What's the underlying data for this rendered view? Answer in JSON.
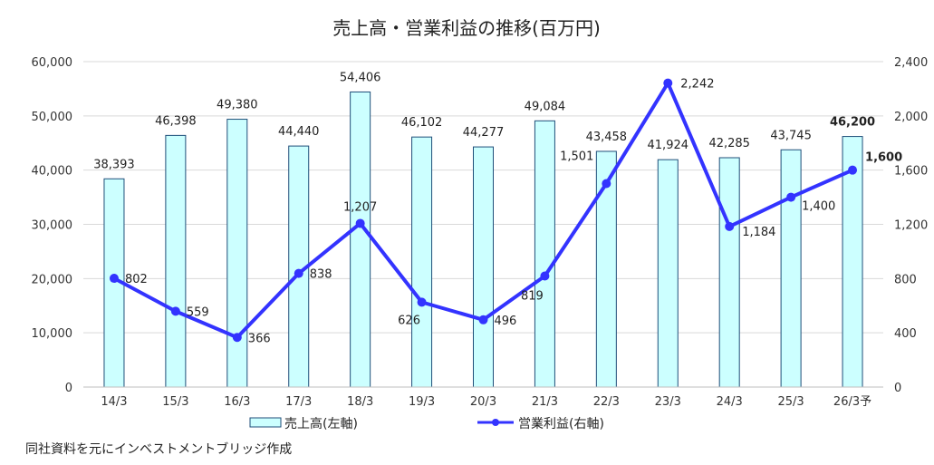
{
  "chart_data": {
    "type": "bar",
    "title": "売上高・営業利益の推移(百万円)",
    "categories": [
      "14/3",
      "15/3",
      "16/3",
      "17/3",
      "18/3",
      "19/3",
      "20/3",
      "21/3",
      "22/3",
      "23/3",
      "24/3",
      "25/3",
      "26/3予"
    ],
    "series": [
      {
        "name": "売上高(左軸)",
        "type": "bar",
        "axis": "left",
        "color": "#ccffff",
        "stroke": "#1f4e79",
        "values": [
          38393,
          46398,
          49380,
          44440,
          54406,
          46102,
          44277,
          49084,
          43458,
          41924,
          42285,
          43745,
          46200
        ],
        "labels": [
          "38,393",
          "46,398",
          "49,380",
          "44,440",
          "54,406",
          "46,102",
          "44,277",
          "49,084",
          "43,458",
          "41,924",
          "42,285",
          "43,745",
          "46,200"
        ]
      },
      {
        "name": "営業利益(右軸)",
        "type": "line",
        "axis": "right",
        "color": "#3333ff",
        "values": [
          802,
          559,
          366,
          838,
          1207,
          626,
          496,
          819,
          1501,
          2242,
          1184,
          1400,
          1600
        ],
        "labels": [
          "802",
          "559",
          "366",
          "838",
          "1,207",
          "626",
          "496",
          "819",
          "1,501",
          "2,242",
          "1,184",
          "1,400",
          "1,600"
        ]
      }
    ],
    "y_left": {
      "ylim": [
        0,
        60000
      ],
      "ticks": [
        "0",
        "10,000",
        "20,000",
        "30,000",
        "40,000",
        "50,000",
        "60,000"
      ]
    },
    "y_right": {
      "ylim": [
        0,
        2400
      ],
      "ticks": [
        "0",
        "400",
        "800",
        "1,200",
        "1,600",
        "2,000",
        "2,400"
      ]
    },
    "grid": true,
    "legend_position": "bottom"
  },
  "note": "同社資料を元にインベストメントブリッジ作成"
}
